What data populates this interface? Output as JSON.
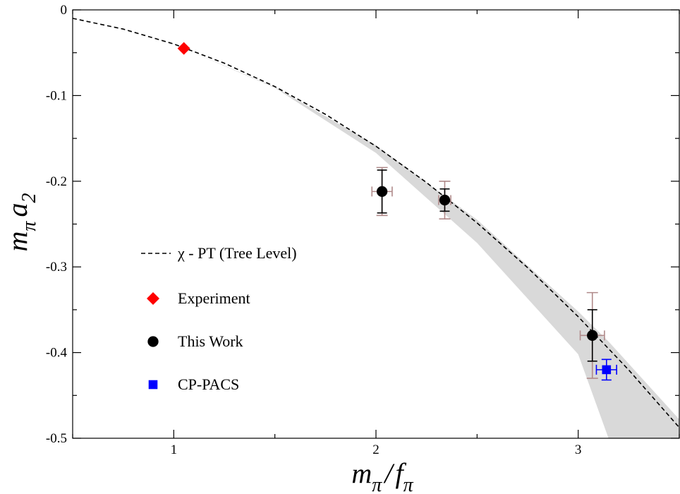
{
  "chart_data": {
    "type": "scatter",
    "xlabel": {
      "main": "m",
      "sub": "π",
      "slash": "/",
      "main2": "f",
      "sub2": "π"
    },
    "ylabel": {
      "main": "m",
      "sub": "π",
      "main2": "a",
      "sub2": "2"
    },
    "xlim": [
      0.5,
      3.5
    ],
    "ylim": [
      -0.5,
      0
    ],
    "xticks": [
      1,
      2,
      3
    ],
    "yticks": [
      0,
      -0.1,
      -0.2,
      -0.3,
      -0.4,
      -0.5
    ],
    "xtick_labels": [
      "1",
      "2",
      "3"
    ],
    "ytick_labels": [
      "0",
      "-0.1",
      "-0.2",
      "-0.3",
      "-0.4",
      "-0.5"
    ],
    "grid": false,
    "legend_position": "center-left",
    "curve": {
      "name": "χ - PT  (Tree Level)",
      "style": "dashed",
      "color": "#000000",
      "formula": "y = -x^2 / (8π)",
      "x": [
        0.5,
        0.75,
        1.0,
        1.25,
        1.5,
        1.75,
        2.0,
        2.25,
        2.5,
        2.75,
        3.0,
        3.25,
        3.5
      ],
      "y": [
        -0.0099,
        -0.0224,
        -0.0398,
        -0.0622,
        -0.0895,
        -0.1219,
        -0.1592,
        -0.2015,
        -0.2487,
        -0.3009,
        -0.3581,
        -0.4203,
        -0.4875
      ]
    },
    "band": {
      "color": "#d9d9d9",
      "x": [
        1.05,
        1.5,
        2.0,
        2.5,
        3.0,
        3.15,
        3.5
      ],
      "upper": [
        -0.045,
        -0.09,
        -0.158,
        -0.245,
        -0.352,
        -0.387,
        -0.478
      ],
      "lower": [
        -0.045,
        -0.091,
        -0.167,
        -0.272,
        -0.402,
        -0.5,
        -0.5
      ]
    },
    "series": [
      {
        "name": "Experiment",
        "marker": "diamond",
        "color": "#ff0000",
        "points": [
          {
            "x": 1.05,
            "y": -0.045
          }
        ]
      },
      {
        "name": "This Work",
        "marker": "circle",
        "color": "#000000",
        "points": [
          {
            "x": 2.03,
            "y": -0.212,
            "yerr": 0.025,
            "yerr_sys": 0.028,
            "xerr": 0.05
          },
          {
            "x": 2.34,
            "y": -0.222,
            "yerr": 0.013,
            "yerr_sys": 0.022,
            "xerr": 0.03
          },
          {
            "x": 3.07,
            "y": -0.38,
            "yerr": 0.03,
            "yerr_sys": 0.05,
            "xerr": 0.06
          }
        ],
        "syst_color": "#b08a8a"
      },
      {
        "name": "CP-PACS",
        "marker": "square",
        "color": "#0000ff",
        "points": [
          {
            "x": 3.14,
            "y": -0.42,
            "yerr": 0.012,
            "xerr": 0.05
          }
        ]
      }
    ]
  }
}
